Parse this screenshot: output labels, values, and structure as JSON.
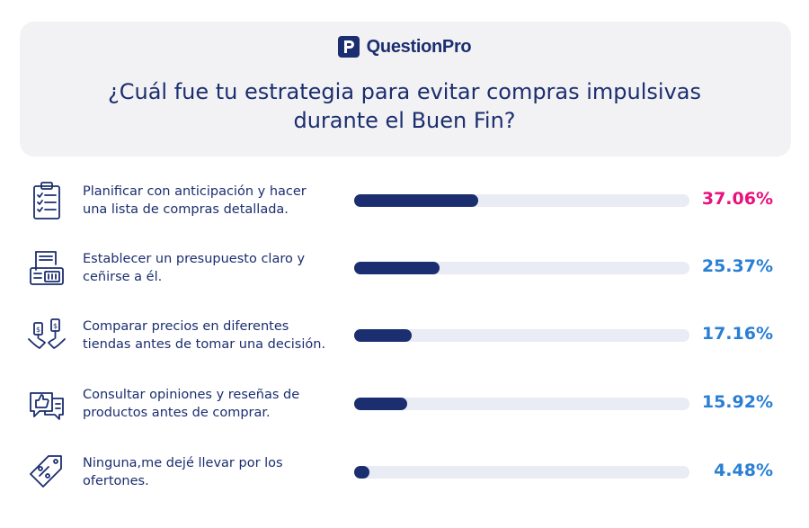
{
  "brand": {
    "name": "QuestionPro"
  },
  "header": {
    "title": "¿Cuál fue tu estrategia para evitar compras impulsivas durante el Buen Fin?"
  },
  "colors": {
    "bar": "#1b2e6f",
    "track": "#e9ebf5",
    "highlight_pct": "#e8127c",
    "pct": "#2a7fd4"
  },
  "chart_data": {
    "type": "bar",
    "orientation": "horizontal",
    "xlim": [
      0,
      100
    ],
    "categories": [
      "Planificar con anticipación y hacer una lista de compras detallada.",
      "Establecer un presupuesto claro y ceñirse a él.",
      "Comparar precios en diferentes tiendas antes de tomar una decisión.",
      "Consultar opiniones y reseñas de productos antes de comprar.",
      "Ninguna,me dejé llevar por los ofertones."
    ],
    "label_lines": [
      [
        "Planificar con anticipación y hacer",
        "una lista de compras detallada."
      ],
      [
        "Establecer un presupuesto claro y",
        "ceñirse a él."
      ],
      [
        "Comparar precios en diferentes",
        "tiendas antes de tomar una decisión."
      ],
      [
        "Consultar opiniones y reseñas de",
        "productos antes de comprar."
      ],
      [
        "Ninguna,me dejé llevar por los",
        "ofertones."
      ]
    ],
    "values": [
      37.06,
      25.37,
      17.16,
      15.92,
      4.48
    ],
    "value_labels": [
      "37.06%",
      "25.37%",
      "17.16%",
      "15.92%",
      "4.48%"
    ],
    "icons": [
      "checklist-icon",
      "calculator-budget-icon",
      "compare-prices-icon",
      "reviews-icon",
      "discount-tag-icon"
    ]
  }
}
